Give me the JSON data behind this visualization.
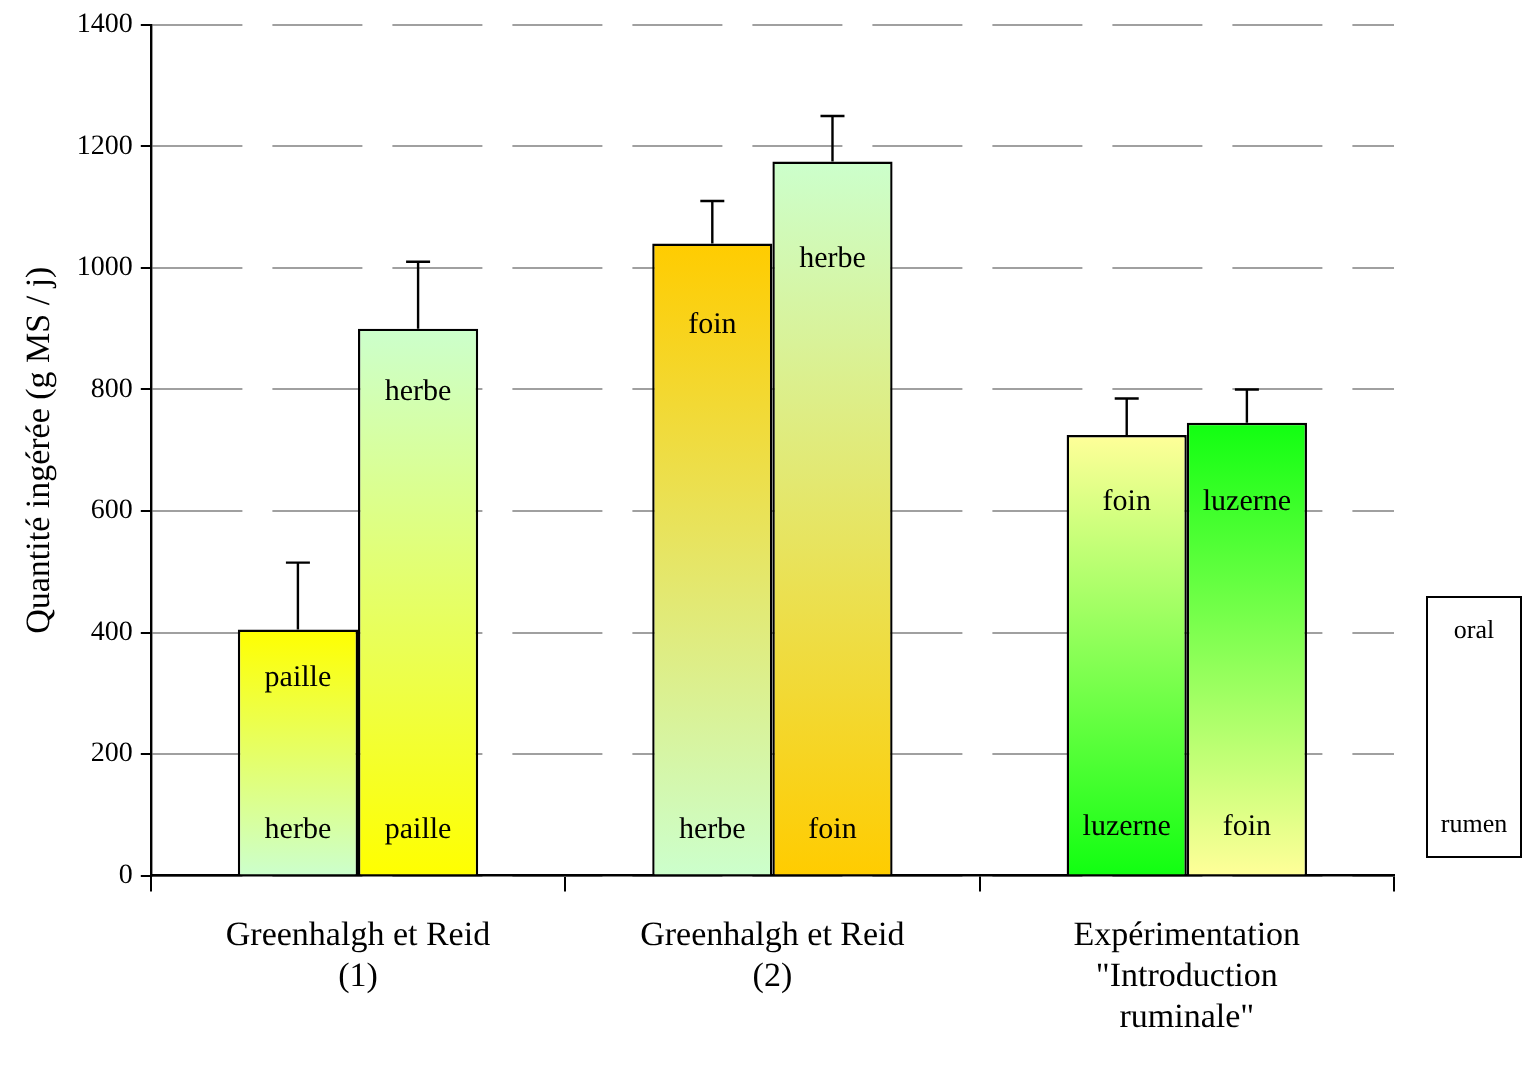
{
  "chart_data": {
    "type": "bar",
    "ylabel": "Quantité ingérée (g MS / j)",
    "categories": [
      "Greenhalgh et Reid\n(1)",
      "Greenhalgh et Reid\n(2)",
      "Expérimentation\n\"Introduction\nruminale\""
    ],
    "series": [
      {
        "colors": [
          "#ffff00",
          "#ffcc00",
          "#ffff99"
        ],
        "values": [
          405,
          1040,
          725
        ],
        "errors": [
          [
            405,
            515
          ],
          [
            1040,
            1110
          ],
          [
            725,
            785
          ]
        ]
      },
      {
        "colors": [
          "#ccffcc",
          "#ccffcc",
          "#11ff11"
        ],
        "values": [
          900,
          1175,
          745
        ],
        "errors": [
          [
            900,
            1010
          ],
          [
            1175,
            1250
          ],
          [
            745,
            800
          ]
        ]
      }
    ],
    "ylim": [
      0,
      1400
    ],
    "yticks": [
      0,
      200,
      400,
      600,
      800,
      1000,
      1200,
      1400
    ],
    "grid": "y",
    "legend": false,
    "annotations": [
      {
        "text": "paille",
        "x": "Greenhalgh et Reid\n(1)",
        "y": 325
      },
      {
        "text": "herbe",
        "x": "Greenhalgh et Reid\n(1)",
        "y": 75
      },
      {
        "text": "herbe",
        "x": "Greenhalgh et Reid\n(1)",
        "y": 795
      },
      {
        "text": "paille",
        "x": "Greenhalgh et Reid\n(1)",
        "y": 75
      },
      {
        "text": "foin",
        "x": "Greenhalgh et Reid\n(2)",
        "y": 905
      },
      {
        "text": "herbe",
        "x": "Greenhalgh et Reid\n(2)",
        "y": 75
      },
      {
        "text": "herbe",
        "x": "Greenhalgh et Reid\n(2)",
        "y": 1015
      },
      {
        "text": "foin",
        "x": "Greenhalgh et Reid\n(2)",
        "y": 75
      },
      {
        "text": "foin",
        "x": "Expérimentation\n\"Introduction\nruminale\"",
        "y": 615
      },
      {
        "text": "luzerne",
        "x": "Expérimentation\n\"Introduction\nruminale\"",
        "y": 80
      },
      {
        "text": "luzerne",
        "x": "Expérimentation\n\"Introduction\nruminale\"",
        "y": 615
      },
      {
        "text": "foin",
        "x": "Expérimentation\n\"Introduction\nruminale\"",
        "y": 80
      },
      "oral",
      "rumen"
    ]
  }
}
